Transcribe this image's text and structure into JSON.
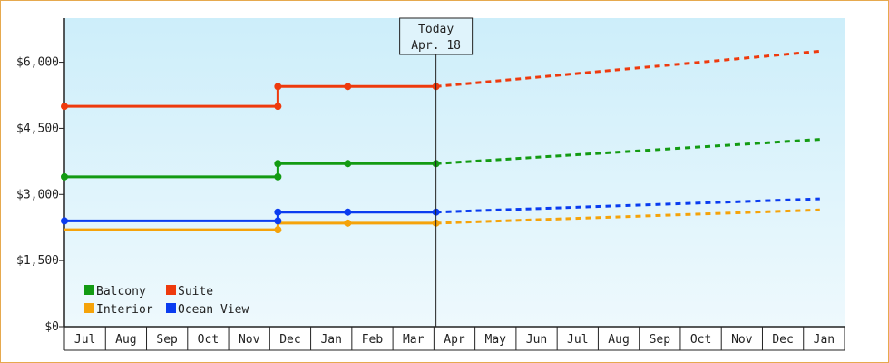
{
  "chart_data": {
    "type": "line",
    "y_ticks": [
      "$0",
      "$1,500",
      "$3,000",
      "$4,500",
      "$6,000"
    ],
    "y_tick_values": [
      0,
      1500,
      3000,
      4500,
      6000
    ],
    "ylim": [
      0,
      7000
    ],
    "x_months": [
      "Jul",
      "Aug",
      "Sep",
      "Oct",
      "Nov",
      "Dec",
      "Jan",
      "Feb",
      "Mar",
      "Apr",
      "May",
      "Jun",
      "Jul",
      "Aug",
      "Sep",
      "Oct",
      "Nov",
      "Dec",
      "Jan"
    ],
    "today": {
      "line1": "Today",
      "line2": "Apr. 18",
      "month_index": 9.05
    },
    "grid": false,
    "legend_position": "bottom-left",
    "series": [
      {
        "name": "Balcony",
        "color": "#139b13",
        "history": [
          [
            0.0,
            3400
          ],
          [
            5.2,
            3400
          ],
          [
            5.2,
            3700
          ],
          [
            6.9,
            3700
          ],
          [
            9.05,
            3700
          ]
        ],
        "points": [
          [
            0.0,
            3400
          ],
          [
            5.2,
            3400
          ],
          [
            5.2,
            3700
          ],
          [
            6.9,
            3700
          ],
          [
            9.05,
            3700
          ]
        ],
        "forecast": [
          [
            9.05,
            3700
          ],
          [
            18.4,
            4250
          ]
        ]
      },
      {
        "name": "Suite",
        "color": "#ee3a0d",
        "history": [
          [
            0.0,
            5000
          ],
          [
            5.2,
            5000
          ],
          [
            5.2,
            5450
          ],
          [
            6.9,
            5450
          ],
          [
            9.05,
            5450
          ]
        ],
        "points": [
          [
            0.0,
            5000
          ],
          [
            5.2,
            5000
          ],
          [
            5.2,
            5450
          ],
          [
            6.9,
            5450
          ],
          [
            9.05,
            5450
          ]
        ],
        "forecast": [
          [
            9.05,
            5450
          ],
          [
            18.4,
            6250
          ]
        ]
      },
      {
        "name": "Interior",
        "color": "#f5a30a",
        "history": [
          [
            0.0,
            2200
          ],
          [
            5.2,
            2200
          ],
          [
            5.2,
            2350
          ],
          [
            6.9,
            2350
          ],
          [
            9.05,
            2350
          ]
        ],
        "points": [
          [
            5.2,
            2200
          ],
          [
            6.9,
            2350
          ],
          [
            9.05,
            2350
          ]
        ],
        "forecast": [
          [
            9.05,
            2350
          ],
          [
            18.4,
            2650
          ]
        ]
      },
      {
        "name": "Ocean View",
        "color": "#0a3cf0",
        "history": [
          [
            0.0,
            2400
          ],
          [
            5.2,
            2400
          ],
          [
            5.2,
            2600
          ],
          [
            6.9,
            2600
          ],
          [
            9.05,
            2600
          ]
        ],
        "points": [
          [
            0.0,
            2400
          ],
          [
            5.2,
            2400
          ],
          [
            5.2,
            2600
          ],
          [
            6.9,
            2600
          ],
          [
            9.05,
            2600
          ]
        ],
        "forecast": [
          [
            9.05,
            2600
          ],
          [
            18.4,
            2900
          ]
        ]
      }
    ],
    "legend": [
      {
        "label": "Balcony",
        "color": "#139b13"
      },
      {
        "label": "Suite",
        "color": "#ee3a0d"
      },
      {
        "label": "Interior",
        "color": "#f5a30a"
      },
      {
        "label": "Ocean View",
        "color": "#0a3cf0"
      }
    ]
  }
}
